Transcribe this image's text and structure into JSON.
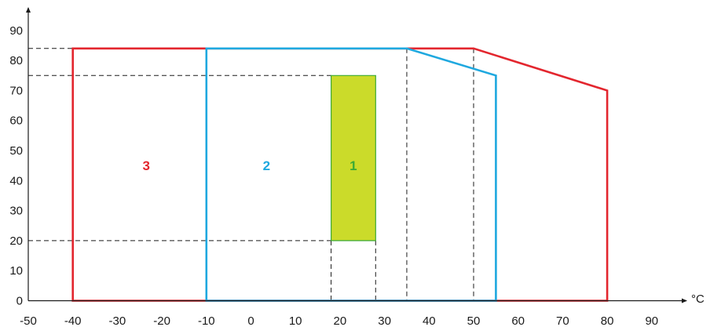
{
  "chart_data": {
    "type": "area",
    "title": "",
    "xlabel": "",
    "ylabel": "",
    "x_unit": "°C",
    "xlim": [
      -50,
      90
    ],
    "ylim": [
      0,
      90
    ],
    "x_ticks": [
      "-50",
      "-40",
      "-30",
      "-20",
      "-10",
      "0",
      "10",
      "20",
      "30",
      "40",
      "50",
      "60",
      "70",
      "80",
      "90"
    ],
    "y_ticks": [
      "0",
      "10",
      "20",
      "30",
      "40",
      "50",
      "60",
      "70",
      "80",
      "90"
    ],
    "zones": [
      {
        "label": "3",
        "color": "#e3262e",
        "filled": false,
        "points": [
          [
            -40,
            0
          ],
          [
            -40,
            84
          ],
          [
            50,
            84
          ],
          [
            80,
            70
          ],
          [
            80,
            0
          ]
        ]
      },
      {
        "label": "2",
        "color": "#1fa8df",
        "filled": false,
        "points": [
          [
            -10,
            0
          ],
          [
            -10,
            84
          ],
          [
            35,
            84
          ],
          [
            55,
            75
          ],
          [
            55,
            0
          ]
        ]
      },
      {
        "label": "1",
        "color": "#3aaa35",
        "fill": "#cbdb2a",
        "filled": true,
        "points": [
          [
            18,
            20
          ],
          [
            18,
            75
          ],
          [
            28,
            75
          ],
          [
            28,
            20
          ]
        ]
      }
    ],
    "label_positions": [
      {
        "label": "3",
        "x": -23.5,
        "y": 45
      },
      {
        "label": "2",
        "x": 3.5,
        "y": 45
      },
      {
        "label": "1",
        "x": 23,
        "y": 45
      }
    ],
    "guides": {
      "horizontal": [
        {
          "y": 84,
          "x_end": -10
        },
        {
          "y": 75,
          "x_end": 18
        },
        {
          "y": 20,
          "x_end": 18
        }
      ],
      "vertical": [
        {
          "x": 18,
          "y_start": 20
        },
        {
          "x": 28,
          "y_start": 20
        },
        {
          "x": 35,
          "y_start": 84
        },
        {
          "x": 50,
          "y_start": 84
        }
      ]
    }
  }
}
